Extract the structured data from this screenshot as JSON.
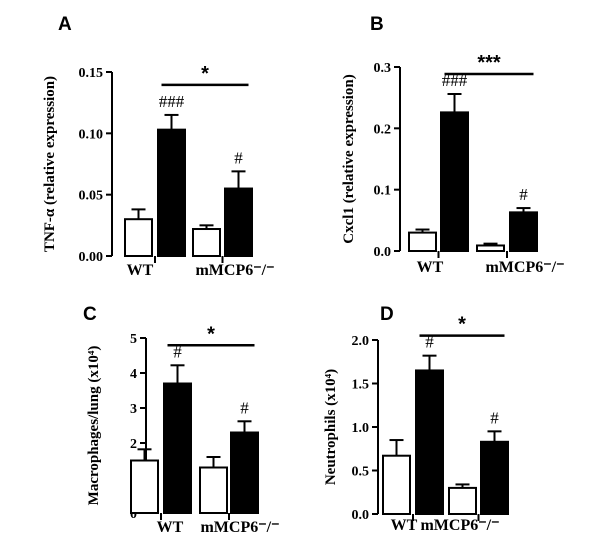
{
  "colors": {
    "control_fill": "#ffffff",
    "treated_fill": "#000000",
    "stroke": "#000000"
  },
  "chart_data": [
    {
      "panel": "A",
      "type": "bar",
      "ylabel": "TNF-α (relative expression)",
      "ylim": [
        0,
        0.15
      ],
      "yticks": [
        "0.00",
        "0.05",
        "0.10",
        "0.15"
      ],
      "groups": [
        "WT",
        "mMCP6⁻/⁻"
      ],
      "bars": [
        {
          "group": "WT",
          "fill": "white",
          "value": 0.03,
          "error": 0.008,
          "mark": ""
        },
        {
          "group": "WT",
          "fill": "black",
          "value": 0.103,
          "error": 0.012,
          "mark": "###"
        },
        {
          "group": "mMCP6⁻/⁻",
          "fill": "white",
          "value": 0.022,
          "error": 0.003,
          "mark": ""
        },
        {
          "group": "mMCP6⁻/⁻",
          "fill": "black",
          "value": 0.055,
          "error": 0.014,
          "mark": "#"
        }
      ],
      "significance": {
        "label": "*",
        "from_bar": 1,
        "to_bar": 3
      }
    },
    {
      "panel": "B",
      "type": "bar",
      "ylabel": "Cxcl1 (relative expression)",
      "ylim": [
        0,
        0.3
      ],
      "yticks": [
        "0.0",
        "0.1",
        "0.2",
        "0.3"
      ],
      "groups": [
        "WT",
        "mMCP6⁻/⁻"
      ],
      "bars": [
        {
          "group": "WT",
          "fill": "white",
          "value": 0.03,
          "error": 0.005,
          "mark": ""
        },
        {
          "group": "WT",
          "fill": "black",
          "value": 0.226,
          "error": 0.03,
          "mark": "###"
        },
        {
          "group": "mMCP6⁻/⁻",
          "fill": "white",
          "value": 0.009,
          "error": 0.003,
          "mark": ""
        },
        {
          "group": "mMCP6⁻/⁻",
          "fill": "black",
          "value": 0.063,
          "error": 0.007,
          "mark": "#"
        }
      ],
      "significance": {
        "label": "***",
        "from_bar": 1,
        "to_bar": 3
      }
    },
    {
      "panel": "C",
      "type": "bar",
      "ylabel": "Macrophages/lung (x10⁴)",
      "ylim": [
        0,
        5
      ],
      "yticks": [
        "0",
        "1",
        "2",
        "3",
        "4",
        "5"
      ],
      "groups": [
        "WT",
        "mMCP6⁻/⁻"
      ],
      "bars": [
        {
          "group": "WT",
          "fill": "white",
          "value": 1.5,
          "error": 0.32,
          "mark": ""
        },
        {
          "group": "WT",
          "fill": "black",
          "value": 3.7,
          "error": 0.52,
          "mark": "#"
        },
        {
          "group": "mMCP6⁻/⁻",
          "fill": "white",
          "value": 1.3,
          "error": 0.3,
          "mark": ""
        },
        {
          "group": "mMCP6⁻/⁻",
          "fill": "black",
          "value": 2.3,
          "error": 0.32,
          "mark": "#"
        }
      ],
      "significance": {
        "label": "*",
        "from_bar": 1,
        "to_bar": 3
      }
    },
    {
      "panel": "D",
      "type": "bar",
      "ylabel": "Neutrophils (x10⁴)",
      "ylim": [
        0,
        2.0
      ],
      "yticks": [
        "0.0",
        "0.5",
        "1.0",
        "1.5",
        "2.0"
      ],
      "groups": [
        "WT",
        "mMCP6⁻/⁻"
      ],
      "bars": [
        {
          "group": "WT",
          "fill": "white",
          "value": 0.67,
          "error": 0.18,
          "mark": ""
        },
        {
          "group": "WT",
          "fill": "black",
          "value": 1.65,
          "error": 0.17,
          "mark": "#"
        },
        {
          "group": "mMCP6⁻/⁻",
          "fill": "white",
          "value": 0.3,
          "error": 0.04,
          "mark": ""
        },
        {
          "group": "mMCP6⁻/⁻",
          "fill": "black",
          "value": 0.83,
          "error": 0.12,
          "mark": "#"
        }
      ],
      "significance": {
        "label": "*",
        "from_bar": 1,
        "to_bar": 3
      }
    }
  ]
}
